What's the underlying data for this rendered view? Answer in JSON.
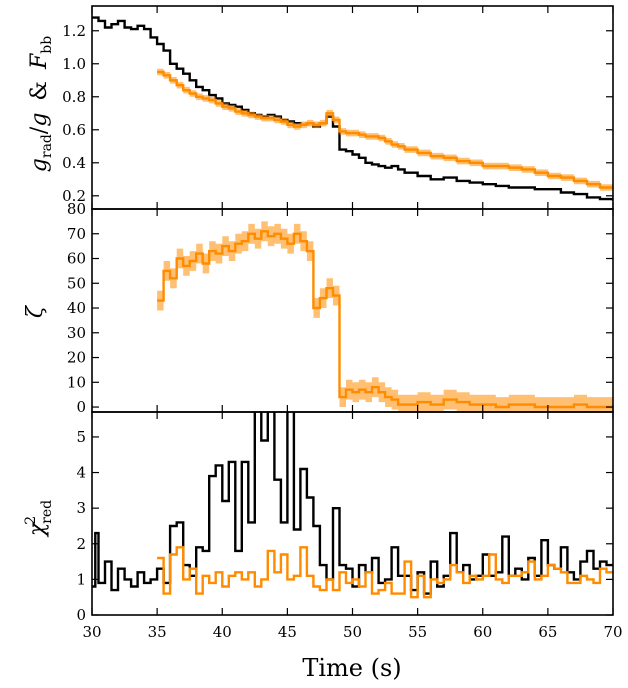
{
  "colors": {
    "model_a": "#000000",
    "model_b": "#ff8c00",
    "band": "#ff8c00"
  },
  "chart_data": [
    {
      "type": "line",
      "ylabel": {
        "g": "g",
        "rad": "rad",
        "slash": "/",
        "g2": "g",
        "amp": "&",
        "F": "F",
        "bb": "bb"
      },
      "ylim": [
        0.12,
        1.35
      ],
      "yticks": [
        "0.2",
        "0.4",
        "0.6",
        "0.8",
        "1.0",
        "1.2"
      ],
      "ytick_values": [
        0.2,
        0.4,
        0.6,
        0.8,
        1.0,
        1.2
      ],
      "series": [
        {
          "color": "black",
          "x": [
            30,
            30.5,
            31,
            31.5,
            32,
            32.5,
            33,
            33.5,
            34,
            34.5,
            35,
            35.5,
            36,
            36.5,
            37,
            37.5,
            38,
            38.5,
            39,
            39.5,
            40,
            40.5,
            41,
            41.5,
            42,
            42.5,
            43,
            43.5,
            44,
            44.5,
            45,
            45.5,
            46,
            46.5,
            47,
            47.5,
            48,
            48.5,
            49,
            49.5,
            50,
            50.5,
            51,
            51.5,
            52,
            52.5,
            53,
            53.5,
            54,
            55,
            56,
            57,
            58,
            59,
            60,
            61,
            62,
            63,
            64,
            65,
            66,
            67,
            68,
            69,
            70
          ],
          "y": [
            1.28,
            1.26,
            1.22,
            1.24,
            1.26,
            1.22,
            1.21,
            1.23,
            1.21,
            1.16,
            1.12,
            1.08,
            1.0,
            0.97,
            0.94,
            0.9,
            0.86,
            0.84,
            0.81,
            0.79,
            0.76,
            0.75,
            0.74,
            0.72,
            0.7,
            0.69,
            0.68,
            0.69,
            0.68,
            0.66,
            0.65,
            0.64,
            0.63,
            0.64,
            0.62,
            0.64,
            0.68,
            0.62,
            0.48,
            0.47,
            0.45,
            0.43,
            0.4,
            0.39,
            0.38,
            0.37,
            0.38,
            0.36,
            0.34,
            0.32,
            0.3,
            0.31,
            0.29,
            0.28,
            0.27,
            0.26,
            0.25,
            0.25,
            0.24,
            0.24,
            0.22,
            0.21,
            0.19,
            0.18,
            0.17
          ]
        },
        {
          "color": "orange",
          "x": [
            35,
            35.5,
            36,
            36.5,
            37,
            37.5,
            38,
            38.5,
            39,
            39.5,
            40,
            40.5,
            41,
            41.5,
            42,
            42.5,
            43,
            43.5,
            44,
            44.5,
            45,
            45.5,
            46,
            46.5,
            47,
            47.5,
            48,
            48.5,
            49,
            49.5,
            50,
            50.5,
            51,
            51.5,
            52,
            52.5,
            53,
            53.5,
            54,
            55,
            56,
            57,
            58,
            59,
            60,
            61,
            62,
            63,
            64,
            65,
            66,
            67,
            68,
            69,
            70
          ],
          "y": [
            0.95,
            0.93,
            0.9,
            0.87,
            0.84,
            0.82,
            0.8,
            0.79,
            0.78,
            0.76,
            0.74,
            0.73,
            0.71,
            0.7,
            0.69,
            0.68,
            0.67,
            0.67,
            0.66,
            0.65,
            0.63,
            0.62,
            0.63,
            0.64,
            0.63,
            0.64,
            0.7,
            0.66,
            0.59,
            0.58,
            0.58,
            0.57,
            0.56,
            0.56,
            0.55,
            0.53,
            0.51,
            0.5,
            0.48,
            0.46,
            0.44,
            0.43,
            0.41,
            0.4,
            0.38,
            0.38,
            0.37,
            0.36,
            0.34,
            0.32,
            0.31,
            0.29,
            0.27,
            0.25,
            0.24
          ],
          "err": 0.02
        }
      ]
    },
    {
      "type": "line",
      "ylabel": "ζ",
      "ylim": [
        -2,
        80
      ],
      "yticks": [
        "0",
        "10",
        "20",
        "30",
        "40",
        "50",
        "60",
        "70",
        "80"
      ],
      "ytick_values": [
        0,
        10,
        20,
        30,
        40,
        50,
        60,
        70,
        80
      ],
      "series": [
        {
          "color": "orange",
          "x": [
            35,
            35.5,
            36,
            36.5,
            37,
            37.5,
            38,
            38.5,
            39,
            39.5,
            40,
            40.5,
            41,
            41.5,
            42,
            42.5,
            43,
            43.5,
            44,
            44.5,
            45,
            45.5,
            46,
            46.5,
            47,
            47.5,
            48,
            48.5,
            49,
            49.5,
            50,
            50.5,
            51,
            51.5,
            52,
            52.5,
            53,
            53.5,
            54,
            55,
            56,
            57,
            58,
            59,
            60,
            61,
            62,
            63,
            64,
            65,
            66,
            67,
            68,
            69,
            70
          ],
          "y": [
            43,
            55,
            52,
            60,
            57,
            59,
            62,
            58,
            63,
            62,
            65,
            63,
            66,
            67,
            70,
            68,
            71,
            69,
            70,
            68,
            66,
            70,
            67,
            63,
            40,
            44,
            48,
            45,
            4,
            7,
            6,
            7,
            6,
            8,
            6,
            4,
            3,
            1,
            1,
            2,
            1,
            3,
            2,
            1,
            1,
            0,
            1,
            1,
            0,
            0,
            0,
            1,
            0,
            0,
            0
          ],
          "err": 4
        }
      ]
    },
    {
      "type": "line",
      "ylabel": {
        "chi": "χ",
        "sq": "2",
        "red": "red"
      },
      "ylim": [
        0,
        5.7
      ],
      "yticks": [
        "0",
        "1",
        "2",
        "3",
        "4",
        "5"
      ],
      "ytick_values": [
        0,
        1,
        2,
        3,
        4,
        5
      ],
      "xlabel": "Time (s)",
      "xticks": [
        "30",
        "35",
        "40",
        "45",
        "50",
        "55",
        "60",
        "65",
        "70"
      ],
      "xtick_values": [
        30,
        35,
        40,
        45,
        50,
        55,
        60,
        65,
        70
      ],
      "series": [
        {
          "color": "black",
          "x": [
            30,
            30.25,
            30.5,
            31,
            31.5,
            32,
            32.5,
            33,
            33.5,
            34,
            34.5,
            35,
            35.5,
            36,
            36.5,
            37,
            37.5,
            38,
            38.5,
            39,
            39.5,
            40,
            40.5,
            41,
            41.5,
            42,
            42.5,
            43,
            43.5,
            44,
            44.5,
            45,
            45.5,
            46,
            46.5,
            47,
            47.5,
            48,
            48.5,
            49,
            49.5,
            50,
            50.5,
            51,
            51.5,
            52,
            52.5,
            53,
            53.5,
            54,
            54.5,
            55,
            55.5,
            56,
            56.5,
            57,
            57.5,
            58,
            58.5,
            59,
            59.5,
            60,
            60.5,
            61,
            61.5,
            62,
            62.5,
            63,
            63.5,
            64,
            64.5,
            65,
            65.5,
            66,
            66.5,
            67,
            67.5,
            68,
            68.5,
            69,
            69.5,
            70
          ],
          "y": [
            0.8,
            2.3,
            0.9,
            1.5,
            0.7,
            1.3,
            1.0,
            0.8,
            1.2,
            0.9,
            1.0,
            1.3,
            0.9,
            2.5,
            2.6,
            1.4,
            1.1,
            1.9,
            1.8,
            3.9,
            4.2,
            3.2,
            4.3,
            1.8,
            4.3,
            2.6,
            5.8,
            4.9,
            5.8,
            3.8,
            2.6,
            5.8,
            2.4,
            4.1,
            3.3,
            2.5,
            1.4,
            1.0,
            3.0,
            1.4,
            1.3,
            0.8,
            1.4,
            1.2,
            1.6,
            0.9,
            1.0,
            1.9,
            1.1,
            1.1,
            0.7,
            1.2,
            0.6,
            1.5,
            0.8,
            1.1,
            2.3,
            1.2,
            1.4,
            1.0,
            1.1,
            1.7,
            1.1,
            1.2,
            2.2,
            1.1,
            1.3,
            1.0,
            1.6,
            1.1,
            2.1,
            1.4,
            1.3,
            1.9,
            1.2,
            1.0,
            1.5,
            1.8,
            1.3,
            1.5,
            1.4,
            1.4
          ]
        },
        {
          "color": "orange",
          "x": [
            35,
            35.5,
            36,
            36.5,
            37,
            37.5,
            38,
            38.5,
            39,
            39.5,
            40,
            40.5,
            41,
            41.5,
            42,
            42.5,
            43,
            43.5,
            44,
            44.5,
            45,
            45.5,
            46,
            46.5,
            47,
            47.5,
            48,
            48.5,
            49,
            49.5,
            50,
            50.5,
            51,
            51.5,
            52,
            52.5,
            53,
            53.5,
            54,
            54.5,
            55,
            55.5,
            56,
            56.5,
            57,
            57.5,
            58,
            58.5,
            59,
            59.5,
            60,
            60.5,
            61,
            61.5,
            62,
            62.5,
            63,
            63.5,
            64,
            64.5,
            65,
            65.5,
            66,
            66.5,
            67,
            67.5,
            68,
            68.5,
            69,
            69.5,
            70
          ],
          "y": [
            1.6,
            0.6,
            1.7,
            1.9,
            1.0,
            1.3,
            0.6,
            1.1,
            0.9,
            1.2,
            0.8,
            1.1,
            1.2,
            1.0,
            1.2,
            0.8,
            1.0,
            1.8,
            1.2,
            1.7,
            1.0,
            1.1,
            1.9,
            1.1,
            0.8,
            0.7,
            1.0,
            0.7,
            1.2,
            0.9,
            1.0,
            0.8,
            1.2,
            0.6,
            0.7,
            0.9,
            0.6,
            0.6,
            1.5,
            0.5,
            1.1,
            0.5,
            1.0,
            0.9,
            1.0,
            1.4,
            1.2,
            0.9,
            1.1,
            1.0,
            1.1,
            1.7,
            1.0,
            0.9,
            1.1,
            1.1,
            1.2,
            1.5,
            1.0,
            1.1,
            1.4,
            1.3,
            1.2,
            0.9,
            0.9,
            1.1,
            1.0,
            0.9,
            1.3,
            1.2,
            1.2
          ]
        }
      ]
    }
  ]
}
